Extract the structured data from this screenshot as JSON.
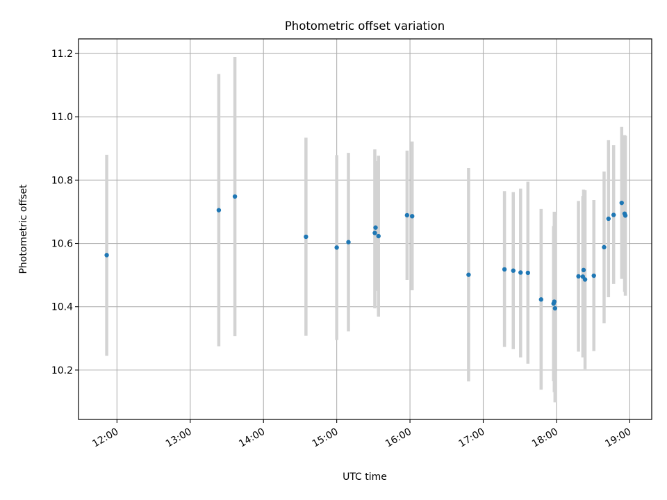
{
  "chart_data": {
    "type": "scatter",
    "title": "Photometric offset variation",
    "xlabel": "UTC time",
    "ylabel": "Photometric offset",
    "x_unit": "hours (UTC)",
    "xlim": [
      11.475,
      19.3
    ],
    "ylim": [
      10.044,
      11.246
    ],
    "x_ticks": [
      {
        "value": 12,
        "label": "12:00"
      },
      {
        "value": 13,
        "label": "13:00"
      },
      {
        "value": 14,
        "label": "14:00"
      },
      {
        "value": 15,
        "label": "15:00"
      },
      {
        "value": 16,
        "label": "16:00"
      },
      {
        "value": 17,
        "label": "17:00"
      },
      {
        "value": 18,
        "label": "18:00"
      },
      {
        "value": 19,
        "label": "19:00"
      }
    ],
    "y_ticks": [
      {
        "value": 10.2,
        "label": "10.2"
      },
      {
        "value": 10.4,
        "label": "10.4"
      },
      {
        "value": 10.6,
        "label": "10.6"
      },
      {
        "value": 10.8,
        "label": "10.8"
      },
      {
        "value": 11.0,
        "label": "11.0"
      },
      {
        "value": 11.2,
        "label": "11.2"
      }
    ],
    "grid": true,
    "colors": {
      "points": "#1f77b4",
      "errorbars": "#d3d3d3",
      "grid": "#b0b0b0"
    },
    "series": [
      {
        "points": [
          {
            "x": 11.86,
            "y": 10.563,
            "lo": 10.245,
            "hi": 10.88
          },
          {
            "x": 13.39,
            "y": 10.705,
            "lo": 10.275,
            "hi": 11.135
          },
          {
            "x": 13.61,
            "y": 10.748,
            "lo": 10.307,
            "hi": 11.189
          },
          {
            "x": 14.58,
            "y": 10.621,
            "lo": 10.308,
            "hi": 10.934
          },
          {
            "x": 15.0,
            "y": 10.587,
            "lo": 10.295,
            "hi": 10.879
          },
          {
            "x": 15.16,
            "y": 10.604,
            "lo": 10.322,
            "hi": 10.886
          },
          {
            "x": 15.52,
            "y": 10.633,
            "lo": 10.395,
            "hi": 10.897
          },
          {
            "x": 15.53,
            "y": 10.65,
            "lo": 10.45,
            "hi": 10.86
          },
          {
            "x": 15.57,
            "y": 10.623,
            "lo": 10.369,
            "hi": 10.877
          },
          {
            "x": 15.96,
            "y": 10.689,
            "lo": 10.485,
            "hi": 10.893
          },
          {
            "x": 16.03,
            "y": 10.686,
            "lo": 10.452,
            "hi": 10.922
          },
          {
            "x": 16.8,
            "y": 10.501,
            "lo": 10.164,
            "hi": 10.838
          },
          {
            "x": 17.29,
            "y": 10.518,
            "lo": 10.273,
            "hi": 10.765
          },
          {
            "x": 17.41,
            "y": 10.514,
            "lo": 10.266,
            "hi": 10.762
          },
          {
            "x": 17.51,
            "y": 10.508,
            "lo": 10.24,
            "hi": 10.773
          },
          {
            "x": 17.61,
            "y": 10.507,
            "lo": 10.22,
            "hi": 10.795
          },
          {
            "x": 17.79,
            "y": 10.423,
            "lo": 10.138,
            "hi": 10.709
          },
          {
            "x": 17.96,
            "y": 10.41,
            "lo": 10.165,
            "hi": 10.655
          },
          {
            "x": 17.97,
            "y": 10.416,
            "lo": 10.13,
            "hi": 10.7
          },
          {
            "x": 17.98,
            "y": 10.395,
            "lo": 10.098,
            "hi": 10.69
          },
          {
            "x": 18.3,
            "y": 10.496,
            "lo": 10.258,
            "hi": 10.734
          },
          {
            "x": 18.36,
            "y": 10.495,
            "lo": 10.24,
            "hi": 10.75
          },
          {
            "x": 18.37,
            "y": 10.516,
            "lo": 10.262,
            "hi": 10.77
          },
          {
            "x": 18.39,
            "y": 10.486,
            "lo": 10.203,
            "hi": 10.768
          },
          {
            "x": 18.51,
            "y": 10.498,
            "lo": 10.26,
            "hi": 10.737
          },
          {
            "x": 18.65,
            "y": 10.588,
            "lo": 10.348,
            "hi": 10.827
          },
          {
            "x": 18.71,
            "y": 10.678,
            "lo": 10.43,
            "hi": 10.926
          },
          {
            "x": 18.78,
            "y": 10.69,
            "lo": 10.472,
            "hi": 10.91
          },
          {
            "x": 18.89,
            "y": 10.728,
            "lo": 10.488,
            "hi": 10.968
          },
          {
            "x": 18.93,
            "y": 10.694,
            "lo": 10.447,
            "hi": 10.942
          },
          {
            "x": 18.94,
            "y": 10.688,
            "lo": 10.435,
            "hi": 10.94
          }
        ]
      }
    ]
  }
}
